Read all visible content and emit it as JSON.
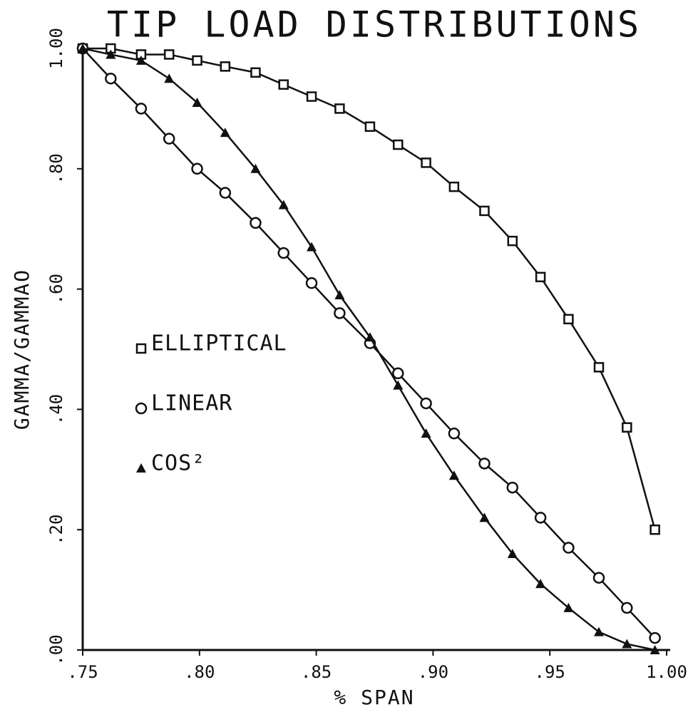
{
  "chart_data": {
    "type": "line",
    "title": "TIP LOAD DISTRIBUTIONS",
    "xlabel": "% SPAN",
    "ylabel": "GAMMA/GAMMAO",
    "x": [
      0.75,
      0.762,
      0.775,
      0.787,
      0.799,
      0.811,
      0.824,
      0.836,
      0.848,
      0.86,
      0.873,
      0.885,
      0.897,
      0.909,
      0.922,
      0.934,
      0.946,
      0.958,
      0.971,
      0.983,
      0.995
    ],
    "series": [
      {
        "name": "ELLIPTICAL",
        "color": "#111111",
        "marker": "square",
        "values": [
          1.0,
          1.0,
          0.99,
          0.99,
          0.98,
          0.97,
          0.96,
          0.94,
          0.92,
          0.9,
          0.87,
          0.84,
          0.81,
          0.77,
          0.73,
          0.68,
          0.62,
          0.55,
          0.47,
          0.37,
          0.2
        ]
      },
      {
        "name": "LINEAR",
        "color": "#111111",
        "marker": "circle",
        "values": [
          1.0,
          0.95,
          0.9,
          0.85,
          0.8,
          0.76,
          0.71,
          0.66,
          0.61,
          0.56,
          0.51,
          0.46,
          0.41,
          0.36,
          0.31,
          0.27,
          0.22,
          0.17,
          0.12,
          0.07,
          0.02
        ]
      },
      {
        "name": "COS²",
        "color": "#111111",
        "marker": "triangle",
        "values": [
          1.0,
          0.99,
          0.98,
          0.95,
          0.91,
          0.86,
          0.8,
          0.74,
          0.67,
          0.59,
          0.52,
          0.44,
          0.36,
          0.29,
          0.22,
          0.16,
          0.11,
          0.07,
          0.03,
          0.01,
          0.0
        ]
      }
    ],
    "xlim": [
      0.75,
      1.0
    ],
    "xticks": [
      {
        "value": 0.75,
        "label": ".75"
      },
      {
        "value": 0.8,
        "label": ".80"
      },
      {
        "value": 0.85,
        "label": ".85"
      },
      {
        "value": 0.9,
        "label": ".90"
      },
      {
        "value": 0.95,
        "label": ".95"
      },
      {
        "value": 1.0,
        "label": "1.00"
      }
    ],
    "ylim": [
      0,
      1.0
    ],
    "yticks": [
      {
        "value": 0,
        "label": ".00"
      },
      {
        "value": 0.2,
        "label": ".20"
      },
      {
        "value": 0.4,
        "label": ".40"
      },
      {
        "value": 0.6,
        "label": ".60"
      },
      {
        "value": 0.8,
        "label": ".80"
      },
      {
        "value": 1.0,
        "label": "1.00"
      }
    ],
    "grid": false
  }
}
